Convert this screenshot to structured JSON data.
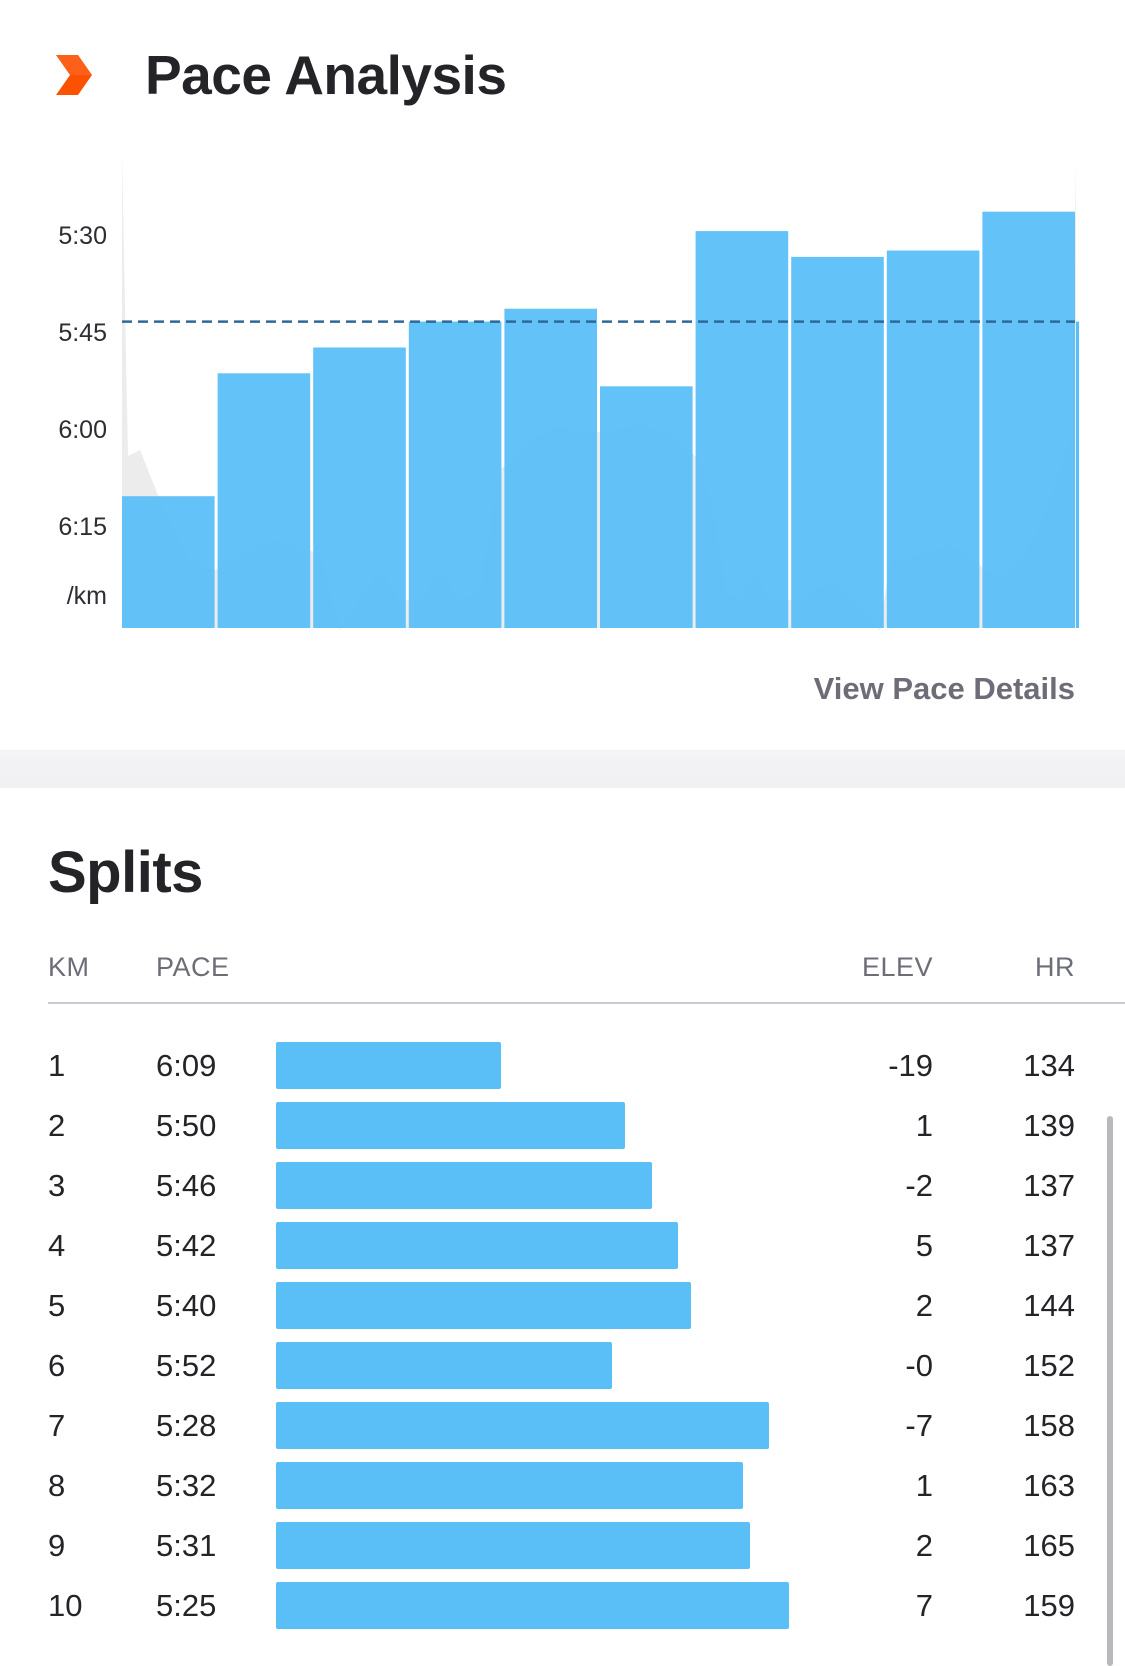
{
  "header": {
    "title": "Pace Analysis",
    "link_label": "View Pace Details"
  },
  "colors": {
    "bar": "#5bbff7",
    "average_line": "#2d6a9a",
    "elevation_area": "#8a8a90",
    "logo": "#fc5200"
  },
  "chart_data": {
    "type": "bar",
    "categories": [
      "1",
      "2",
      "3",
      "4",
      "5",
      "6",
      "7",
      "8",
      "9",
      "10"
    ],
    "values": [
      369,
      350,
      346,
      342,
      340,
      352,
      328,
      332,
      331,
      325
    ],
    "value_format": "seconds per km (displayed m:ss)",
    "y_tick_labels": [
      "5:30",
      "5:45",
      "6:00",
      "6:15"
    ],
    "y_unit_label": "/km",
    "y_axis": {
      "inverted": true,
      "top": 320,
      "bottom": 390
    },
    "reference_line": {
      "label": "",
      "value": 342,
      "style": "dashed"
    },
    "elevation_profile_shown": true,
    "grid": false,
    "legend": "none"
  },
  "splits": {
    "title": "Splits",
    "headers": {
      "km": "KM",
      "pace": "PACE",
      "elev": "ELEV",
      "hr": "HR"
    },
    "rows": [
      {
        "km": "1",
        "pace": "6:09",
        "elev": "-19",
        "hr": "134",
        "pace_sec": 369
      },
      {
        "km": "2",
        "pace": "5:50",
        "elev": "1",
        "hr": "139",
        "pace_sec": 350
      },
      {
        "km": "3",
        "pace": "5:46",
        "elev": "-2",
        "hr": "137",
        "pace_sec": 346
      },
      {
        "km": "4",
        "pace": "5:42",
        "elev": "5",
        "hr": "137",
        "pace_sec": 342
      },
      {
        "km": "5",
        "pace": "5:40",
        "elev": "2",
        "hr": "144",
        "pace_sec": 340
      },
      {
        "km": "6",
        "pace": "5:52",
        "elev": "-0",
        "hr": "152",
        "pace_sec": 352
      },
      {
        "km": "7",
        "pace": "5:28",
        "elev": "-7",
        "hr": "158",
        "pace_sec": 328
      },
      {
        "km": "8",
        "pace": "5:32",
        "elev": "1",
        "hr": "163",
        "pace_sec": 332
      },
      {
        "km": "9",
        "pace": "5:31",
        "elev": "2",
        "hr": "165",
        "pace_sec": 331
      },
      {
        "km": "10",
        "pace": "5:25",
        "elev": "7",
        "hr": "159",
        "pace_sec": 325
      }
    ]
  }
}
